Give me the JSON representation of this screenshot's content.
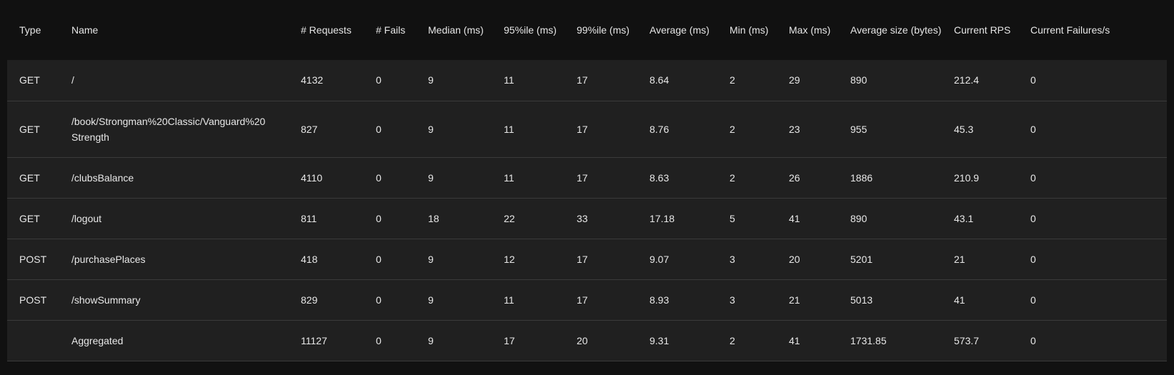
{
  "columns": [
    "Type",
    "Name",
    "# Requests",
    "# Fails",
    "Median (ms)",
    "95%ile (ms)",
    "99%ile (ms)",
    "Average (ms)",
    "Min (ms)",
    "Max (ms)",
    "Average size (bytes)",
    "Current RPS",
    "Current Failures/s"
  ],
  "rows": [
    {
      "type": "GET",
      "name": "/",
      "requests": "4132",
      "fails": "0",
      "median": "9",
      "p95": "11",
      "p99": "17",
      "avg": "8.64",
      "min": "2",
      "max": "29",
      "avg_size": "890",
      "rps": "212.4",
      "failures_s": "0"
    },
    {
      "type": "GET",
      "name": "/book/Strongman%20Classic/Vanguard%20Strength",
      "requests": "827",
      "fails": "0",
      "median": "9",
      "p95": "11",
      "p99": "17",
      "avg": "8.76",
      "min": "2",
      "max": "23",
      "avg_size": "955",
      "rps": "45.3",
      "failures_s": "0"
    },
    {
      "type": "GET",
      "name": "/clubsBalance",
      "requests": "4110",
      "fails": "0",
      "median": "9",
      "p95": "11",
      "p99": "17",
      "avg": "8.63",
      "min": "2",
      "max": "26",
      "avg_size": "1886",
      "rps": "210.9",
      "failures_s": "0"
    },
    {
      "type": "GET",
      "name": "/logout",
      "requests": "811",
      "fails": "0",
      "median": "18",
      "p95": "22",
      "p99": "33",
      "avg": "17.18",
      "min": "5",
      "max": "41",
      "avg_size": "890",
      "rps": "43.1",
      "failures_s": "0"
    },
    {
      "type": "POST",
      "name": "/purchasePlaces",
      "requests": "418",
      "fails": "0",
      "median": "9",
      "p95": "12",
      "p99": "17",
      "avg": "9.07",
      "min": "3",
      "max": "20",
      "avg_size": "5201",
      "rps": "21",
      "failures_s": "0"
    },
    {
      "type": "POST",
      "name": "/showSummary",
      "requests": "829",
      "fails": "0",
      "median": "9",
      "p95": "11",
      "p99": "17",
      "avg": "8.93",
      "min": "3",
      "max": "21",
      "avg_size": "5013",
      "rps": "41",
      "failures_s": "0"
    },
    {
      "type": "",
      "name": "Aggregated",
      "requests": "11127",
      "fails": "0",
      "median": "9",
      "p95": "17",
      "p99": "20",
      "avg": "9.31",
      "min": "2",
      "max": "41",
      "avg_size": "1731.85",
      "rps": "573.7",
      "failures_s": "0"
    }
  ]
}
